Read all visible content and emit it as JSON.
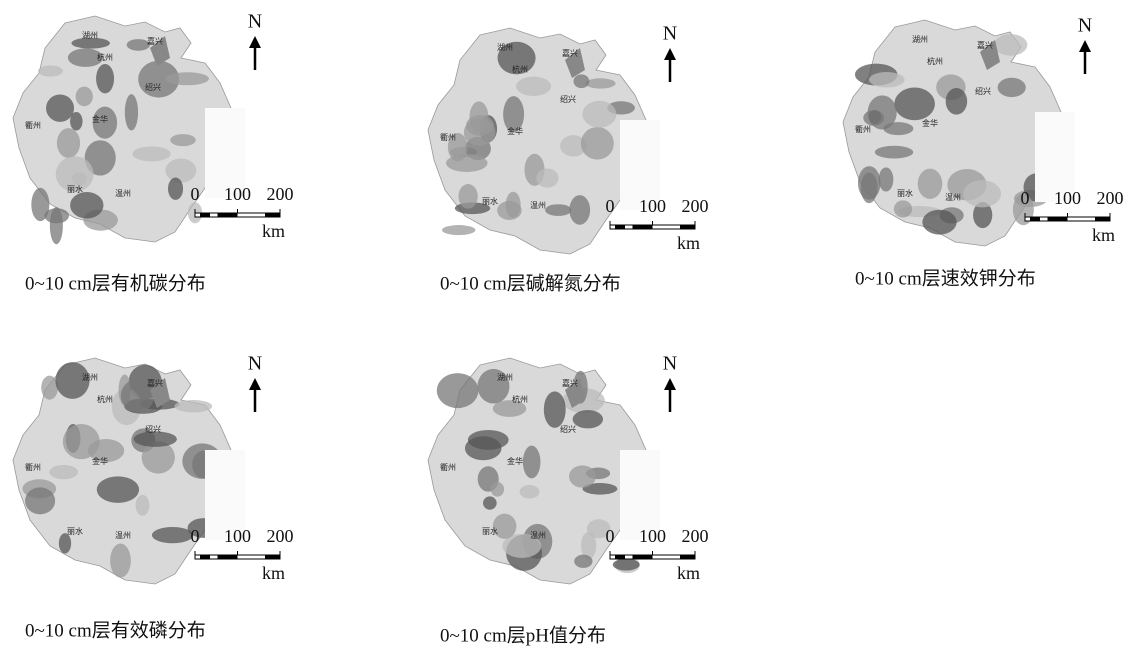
{
  "panels": [
    {
      "caption": "0~10 cm层有机碳分布"
    },
    {
      "caption": "0~10 cm层碱解氮分布"
    },
    {
      "caption": "0~10 cm层速效钾分布"
    },
    {
      "caption": "0~10 cm层有效磷分布"
    },
    {
      "caption": "0~10 cm层pH值分布"
    }
  ],
  "map_labels": {
    "north": "N",
    "scale_ticks": [
      0,
      100,
      200
    ],
    "unit": "km",
    "cities": [
      "湖州",
      "嘉兴",
      "杭州",
      "绍兴",
      "衢州",
      "金华",
      "丽水",
      "温州"
    ]
  }
}
